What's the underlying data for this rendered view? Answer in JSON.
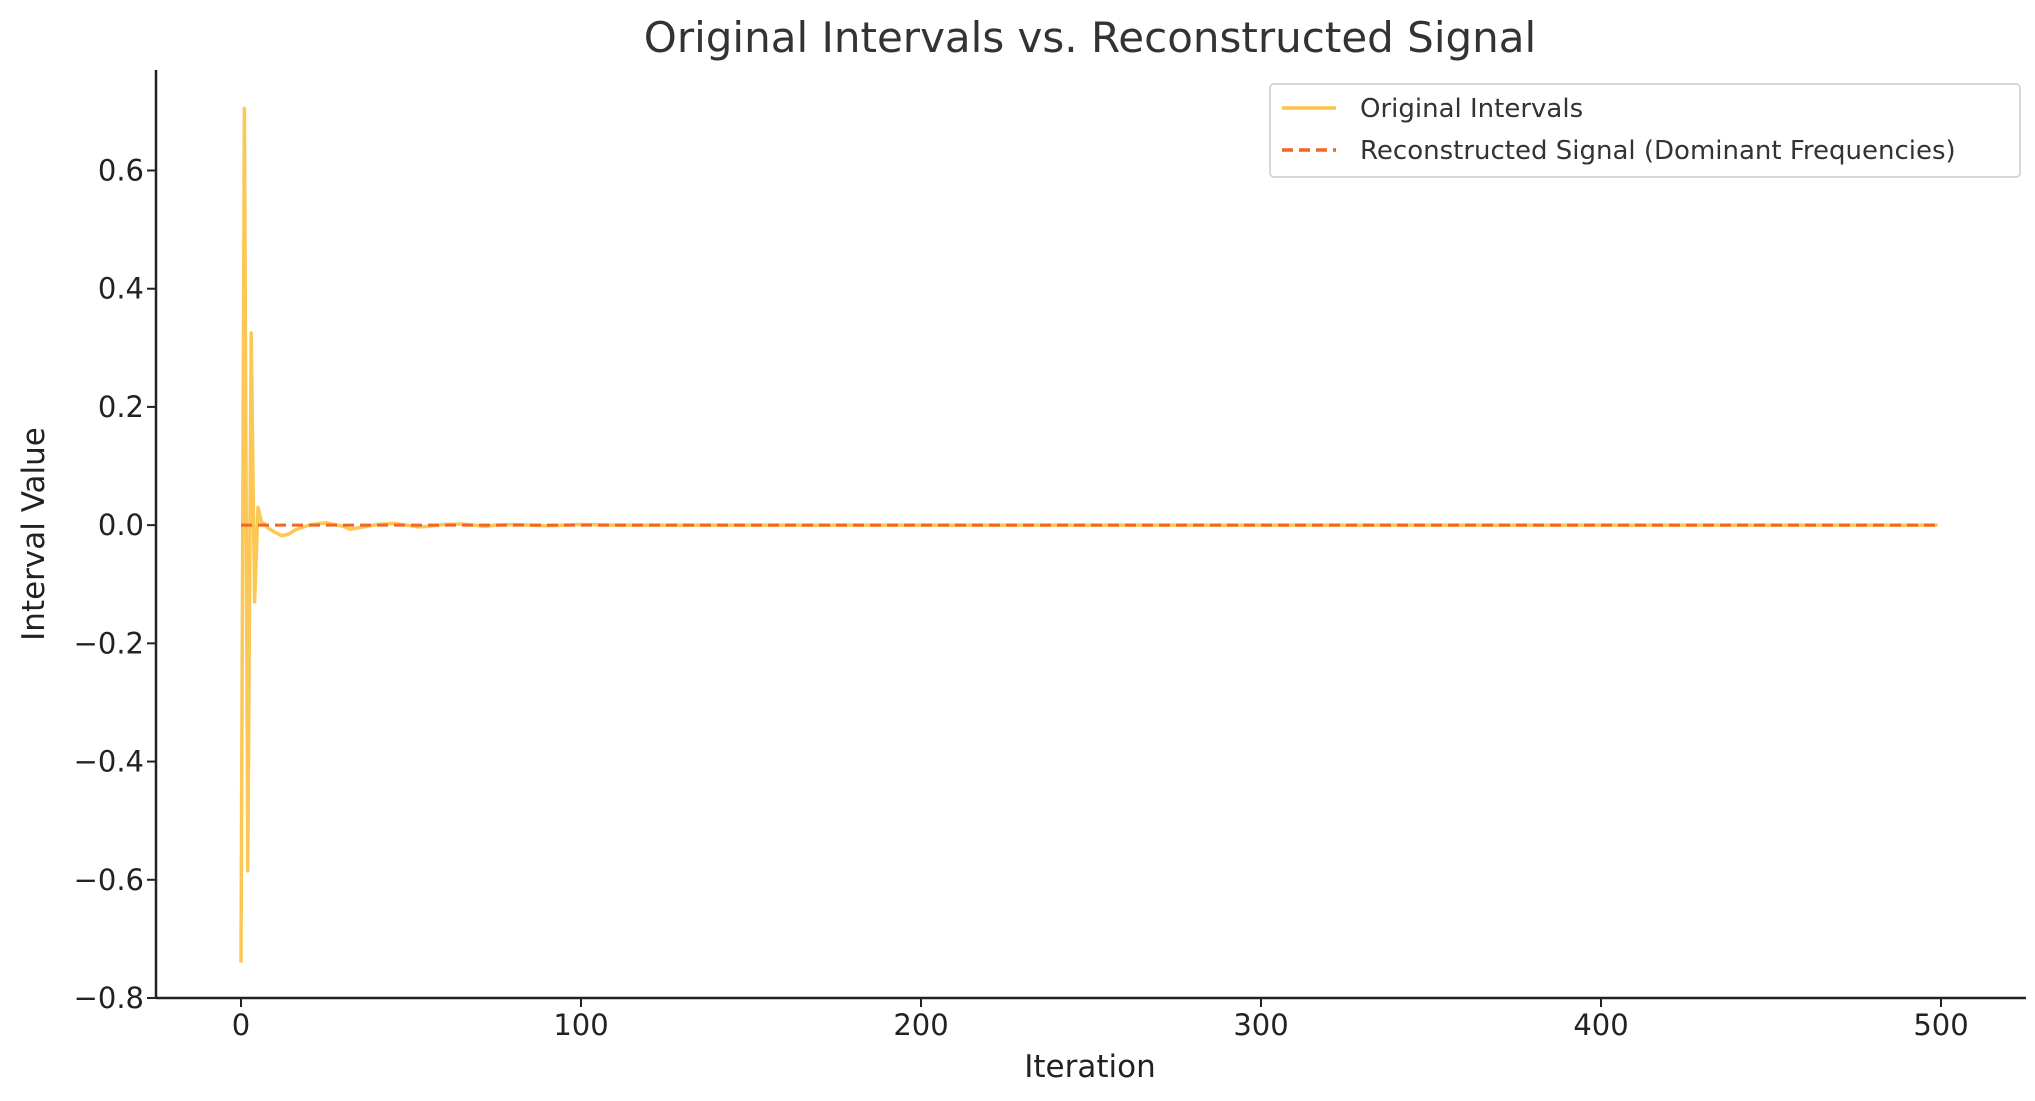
{
  "chart_data": {
    "type": "line",
    "title": "Original Intervals vs. Reconstructed Signal",
    "xlabel": "Iteration",
    "ylabel": "Interval Value",
    "xlim": [
      -25,
      525
    ],
    "ylim": [
      -0.8,
      0.77
    ],
    "x_ticks": [
      0,
      100,
      200,
      300,
      400,
      500
    ],
    "y_ticks": [
      0.6,
      0.4,
      0.2,
      0.0,
      -0.2,
      -0.4,
      -0.6,
      -0.8
    ],
    "x_tick_labels": [
      "0",
      "100",
      "200",
      "300",
      "400",
      "500"
    ],
    "y_tick_labels": [
      "0.6",
      "0.4",
      "0.2",
      "0.0",
      "−0.2",
      "−0.4",
      "−0.6",
      "−0.8"
    ],
    "grid": false,
    "legend_position": "top-right",
    "series": [
      {
        "name": "Original Intervals",
        "color": "#FCC243",
        "style": "solid",
        "x": [
          0,
          1,
          2,
          3,
          4,
          5,
          6,
          7,
          8,
          10,
          12,
          14,
          16,
          20,
          25,
          30,
          32,
          35,
          40,
          45,
          50,
          52,
          55,
          60,
          65,
          70,
          72,
          75,
          80,
          85,
          90,
          95,
          100,
          110,
          120,
          140,
          160,
          200,
          250,
          300,
          350,
          400,
          450,
          499
        ],
        "y": [
          -0.74,
          0.705,
          -0.585,
          0.325,
          -0.13,
          0.03,
          0.005,
          0.002,
          -0.005,
          -0.012,
          -0.018,
          -0.015,
          -0.008,
          0.0,
          0.004,
          -0.002,
          -0.007,
          -0.004,
          0.001,
          0.003,
          -0.001,
          -0.003,
          -0.002,
          0.001,
          0.002,
          -0.001,
          -0.002,
          0.0,
          0.001,
          0.0,
          -0.001,
          0.0,
          0.001,
          0.0,
          0.0,
          0.0,
          0.0,
          0.0,
          0.0,
          0.0,
          0.0,
          0.0,
          0.0,
          0.0
        ]
      },
      {
        "name": "Reconstructed Signal (Dominant Frequencies)",
        "color": "#F26522",
        "style": "dashed",
        "x": [
          0,
          499
        ],
        "y": [
          0.0,
          0.0
        ]
      }
    ]
  }
}
